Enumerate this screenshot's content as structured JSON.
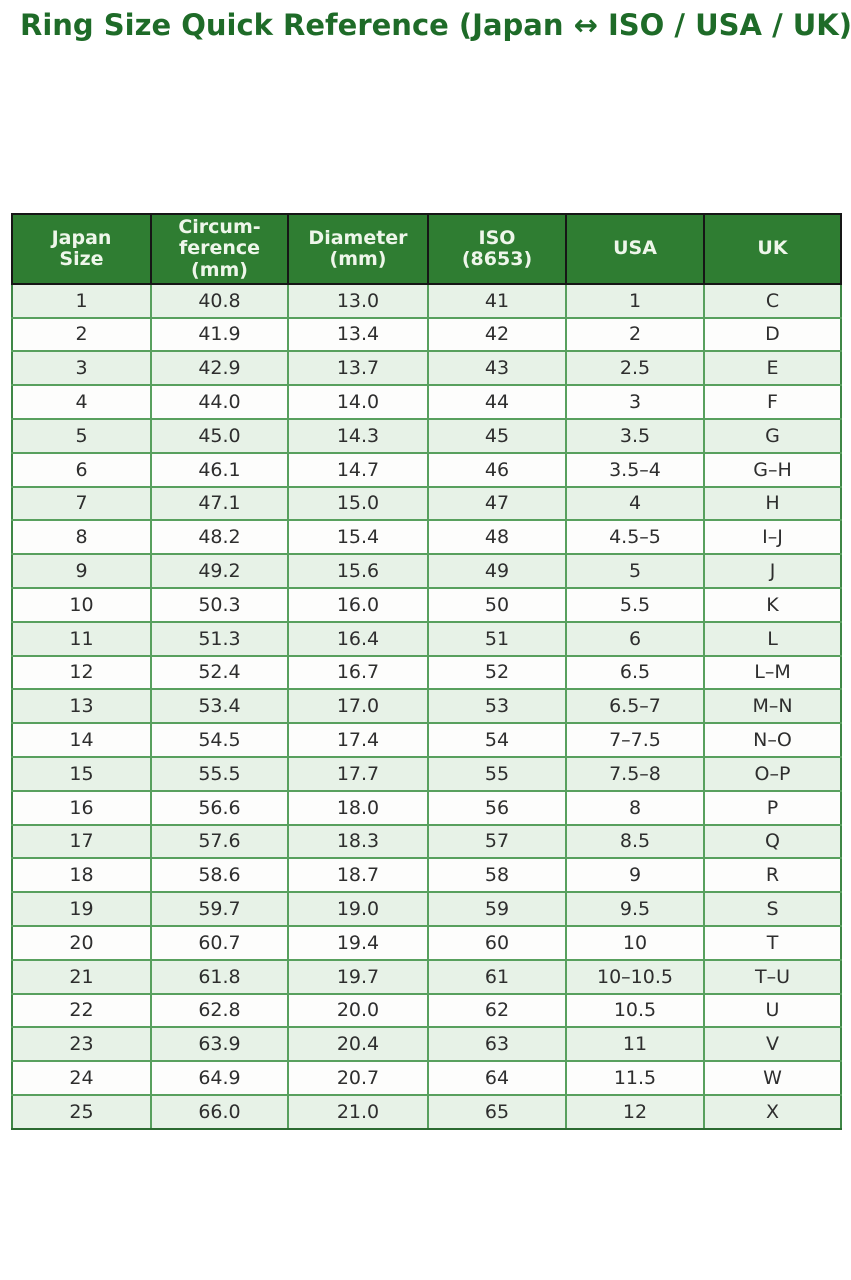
{
  "page": {
    "title": "Ring Size Quick Reference (Japan ↔ ISO / USA / UK)"
  },
  "table": {
    "columns": [
      "Japan\nSize",
      "Circum-\nference\n(mm)",
      "Diameter\n(mm)",
      "ISO\n(8653)",
      "USA",
      "UK"
    ],
    "rows": [
      [
        "1",
        "40.8",
        "13.0",
        "41",
        "1",
        "C"
      ],
      [
        "2",
        "41.9",
        "13.4",
        "42",
        "2",
        "D"
      ],
      [
        "3",
        "42.9",
        "13.7",
        "43",
        "2.5",
        "E"
      ],
      [
        "4",
        "44.0",
        "14.0",
        "44",
        "3",
        "F"
      ],
      [
        "5",
        "45.0",
        "14.3",
        "45",
        "3.5",
        "G"
      ],
      [
        "6",
        "46.1",
        "14.7",
        "46",
        "3.5–4",
        "G–H"
      ],
      [
        "7",
        "47.1",
        "15.0",
        "47",
        "4",
        "H"
      ],
      [
        "8",
        "48.2",
        "15.4",
        "48",
        "4.5–5",
        "I–J"
      ],
      [
        "9",
        "49.2",
        "15.6",
        "49",
        "5",
        "J"
      ],
      [
        "10",
        "50.3",
        "16.0",
        "50",
        "5.5",
        "K"
      ],
      [
        "11",
        "51.3",
        "16.4",
        "51",
        "6",
        "L"
      ],
      [
        "12",
        "52.4",
        "16.7",
        "52",
        "6.5",
        "L–M"
      ],
      [
        "13",
        "53.4",
        "17.0",
        "53",
        "6.5–7",
        "M–N"
      ],
      [
        "14",
        "54.5",
        "17.4",
        "54",
        "7–7.5",
        "N–O"
      ],
      [
        "15",
        "55.5",
        "17.7",
        "55",
        "7.5–8",
        "O–P"
      ],
      [
        "16",
        "56.6",
        "18.0",
        "56",
        "8",
        "P"
      ],
      [
        "17",
        "57.6",
        "18.3",
        "57",
        "8.5",
        "Q"
      ],
      [
        "18",
        "58.6",
        "18.7",
        "58",
        "9",
        "R"
      ],
      [
        "19",
        "59.7",
        "19.0",
        "59",
        "9.5",
        "S"
      ],
      [
        "20",
        "60.7",
        "19.4",
        "60",
        "10",
        "T"
      ],
      [
        "21",
        "61.8",
        "19.7",
        "61",
        "10–10.5",
        "T–U"
      ],
      [
        "22",
        "62.8",
        "20.0",
        "62",
        "10.5",
        "U"
      ],
      [
        "23",
        "63.9",
        "20.4",
        "63",
        "11",
        "V"
      ],
      [
        "24",
        "64.9",
        "20.7",
        "64",
        "11.5",
        "W"
      ],
      [
        "25",
        "66.0",
        "21.0",
        "65",
        "12",
        "X"
      ]
    ],
    "colors": {
      "title_green": "#1e6b28",
      "header_bg": "#2f7d32",
      "header_text": "#eef6ea",
      "row_odd_bg": "#e7f2e7",
      "row_even_bg": "#fdfdfc",
      "body_border": "#58a05e",
      "header_border": "#161616"
    }
  }
}
